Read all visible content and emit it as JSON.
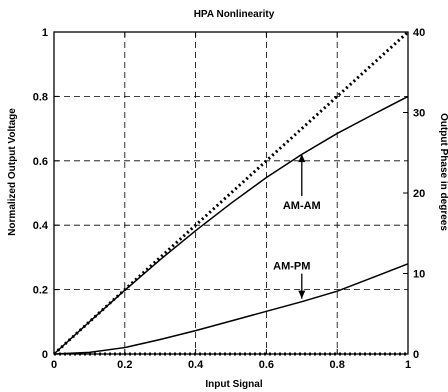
{
  "chart_data": {
    "type": "line",
    "title": "HPA Nonlinearity",
    "xlabel": "Input Signal",
    "ylabel": "Normalized Output Voltage",
    "y2label": "Output Phase in degrees",
    "xlim": [
      0,
      1
    ],
    "ylim": [
      0,
      1
    ],
    "y2lim": [
      0,
      40
    ],
    "grid": true,
    "x_ticks": [
      "0",
      "0.2",
      "0.4",
      "0.6",
      "0.8",
      "1"
    ],
    "y_ticks": [
      "0",
      "0.2",
      "0.4",
      "0.6",
      "0.8",
      "1"
    ],
    "y2_ticks": [
      "0",
      "10",
      "20",
      "30",
      "40"
    ],
    "x": [
      0,
      0.1,
      0.2,
      0.3,
      0.4,
      0.5,
      0.6,
      0.7,
      0.8,
      0.9,
      1.0
    ],
    "series": [
      {
        "name": "AM-AM",
        "axis": "left",
        "style": "solid",
        "color": "#000000",
        "values": [
          0,
          0.1,
          0.198,
          0.293,
          0.383,
          0.468,
          0.548,
          0.62,
          0.685,
          0.743,
          0.8
        ]
      },
      {
        "name": "AM-PM",
        "axis": "right",
        "style": "solid",
        "color": "#000000",
        "values": [
          0,
          0.2,
          0.8,
          1.8,
          2.9,
          4.1,
          5.3,
          6.5,
          7.8,
          9.5,
          11.2
        ]
      },
      {
        "name": "",
        "axis": "left",
        "style": "dotted",
        "color": "#000000",
        "values": [
          0,
          0.1,
          0.2,
          0.3,
          0.4,
          0.5,
          0.6,
          0.7,
          0.8,
          0.9,
          1.0
        ]
      },
      {
        "name": "",
        "axis": "right",
        "style": "dotted",
        "color": "#000000",
        "values": [
          0,
          0,
          0,
          0,
          0,
          0,
          0,
          0,
          0,
          0,
          0
        ]
      }
    ],
    "annotations": [
      {
        "text": "AM-AM",
        "arrow_to": {
          "x": 0.7,
          "y": 0.63,
          "axis": "left"
        }
      },
      {
        "text": "AM-PM",
        "arrow_to": {
          "x": 0.7,
          "y": 6.5,
          "axis": "right"
        }
      }
    ]
  }
}
